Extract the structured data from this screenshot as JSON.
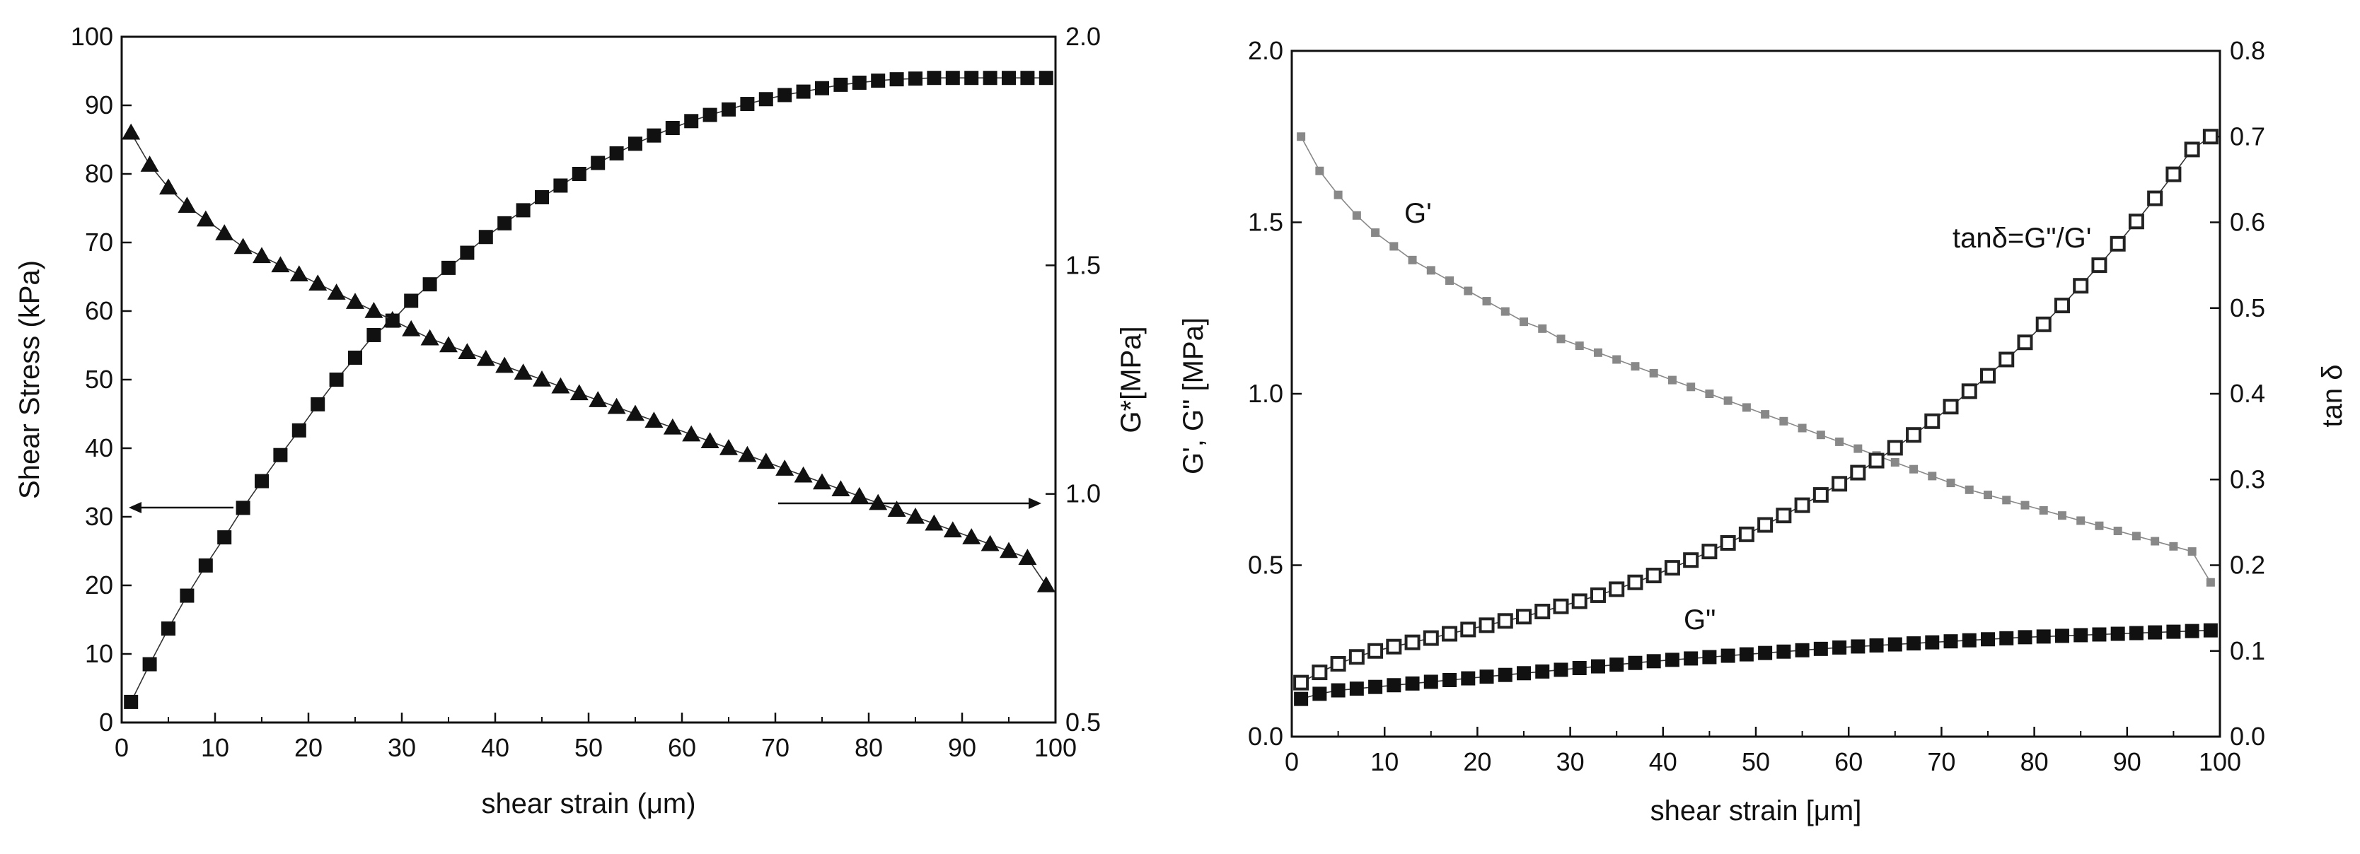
{
  "chart_data": [
    {
      "type": "scatter",
      "title": "",
      "xlabel": "shear strain (μm)",
      "ylabel_left": "Shear Stress (kPa)",
      "ylabel_right": "G*[MPa]",
      "xlim": [
        0,
        100
      ],
      "ylim_left": [
        0,
        100
      ],
      "ylim_right": [
        0.5,
        2.0
      ],
      "x_ticks": [
        "0",
        "10",
        "20",
        "30",
        "40",
        "50",
        "60",
        "70",
        "80",
        "90",
        "100"
      ],
      "y_left_ticks": [
        "0",
        "10",
        "20",
        "30",
        "40",
        "50",
        "60",
        "70",
        "80",
        "90",
        "100"
      ],
      "y_right_ticks": [
        "0.5",
        "1.0",
        "1.5",
        "2.0"
      ],
      "series": [
        {
          "name": "Shear Stress",
          "axis": "left",
          "marker": "square",
          "x": [
            1,
            3,
            5,
            7,
            9,
            11,
            13,
            15,
            17,
            19,
            21,
            23,
            25,
            27,
            29,
            31,
            33,
            35,
            37,
            39,
            41,
            43,
            45,
            47,
            49,
            51,
            53,
            55,
            57,
            59,
            61,
            63,
            65,
            67,
            69,
            71,
            73,
            75,
            77,
            79,
            81,
            83,
            85,
            87,
            89,
            91,
            93,
            95,
            97,
            99
          ],
          "y": [
            3,
            8.5,
            13.7,
            18.5,
            22.9,
            27,
            31.3,
            35.2,
            39,
            42.6,
            46.4,
            50,
            53.2,
            56.5,
            58.6,
            61.5,
            63.9,
            66.3,
            68.5,
            70.8,
            72.8,
            74.7,
            76.6,
            78.3,
            80,
            81.6,
            83,
            84.4,
            85.6,
            86.7,
            87.7,
            88.6,
            89.4,
            90.2,
            90.9,
            91.5,
            92,
            92.5,
            93,
            93.3,
            93.6,
            93.8,
            93.9,
            94,
            94,
            94,
            94,
            94,
            94,
            94
          ]
        },
        {
          "name": "G*",
          "axis": "right",
          "marker": "triangle",
          "x": [
            1,
            3,
            5,
            7,
            9,
            11,
            13,
            15,
            17,
            19,
            21,
            23,
            25,
            27,
            29,
            31,
            33,
            35,
            37,
            39,
            41,
            43,
            45,
            47,
            49,
            51,
            53,
            55,
            57,
            59,
            61,
            63,
            65,
            67,
            69,
            71,
            73,
            75,
            77,
            79,
            81,
            83,
            85,
            87,
            89,
            91,
            93,
            95,
            97,
            99
          ],
          "y": [
            1.79,
            1.72,
            1.67,
            1.63,
            1.6,
            1.57,
            1.54,
            1.52,
            1.5,
            1.48,
            1.46,
            1.44,
            1.42,
            1.4,
            1.38,
            1.36,
            1.34,
            1.325,
            1.31,
            1.295,
            1.28,
            1.265,
            1.25,
            1.235,
            1.22,
            1.205,
            1.19,
            1.175,
            1.16,
            1.145,
            1.13,
            1.115,
            1.1,
            1.085,
            1.07,
            1.055,
            1.04,
            1.025,
            1.01,
            0.995,
            0.98,
            0.965,
            0.95,
            0.935,
            0.92,
            0.905,
            0.89,
            0.875,
            0.86,
            0.8
          ]
        }
      ]
    },
    {
      "type": "scatter",
      "title": "",
      "xlabel": "shear strain [μm]",
      "ylabel_left": "G', G\" [MPa]",
      "ylabel_right": "tan δ",
      "xlim": [
        0,
        100
      ],
      "ylim_left": [
        0,
        2.0
      ],
      "ylim_right": [
        0,
        0.8
      ],
      "x_ticks": [
        "0",
        "10",
        "20",
        "30",
        "40",
        "50",
        "60",
        "70",
        "80",
        "90",
        "100"
      ],
      "y_left_ticks": [
        "0.0",
        "0.5",
        "1.0",
        "1.5",
        "2.0"
      ],
      "y_right_ticks": [
        "0.0",
        "0.1",
        "0.2",
        "0.3",
        "0.4",
        "0.5",
        "0.6",
        "0.7",
        "0.8"
      ],
      "annotations": [
        "G'",
        "tanδ=G\"/G'",
        "G\""
      ],
      "series": [
        {
          "name": "G'",
          "axis": "left",
          "marker": "small-square-gray",
          "x": [
            1,
            3,
            5,
            7,
            9,
            11,
            13,
            15,
            17,
            19,
            21,
            23,
            25,
            27,
            29,
            31,
            33,
            35,
            37,
            39,
            41,
            43,
            45,
            47,
            49,
            51,
            53,
            55,
            57,
            59,
            61,
            63,
            65,
            67,
            69,
            71,
            73,
            75,
            77,
            79,
            81,
            83,
            85,
            87,
            89,
            91,
            93,
            95,
            97,
            99
          ],
          "y": [
            1.75,
            1.65,
            1.58,
            1.52,
            1.47,
            1.43,
            1.39,
            1.36,
            1.33,
            1.3,
            1.27,
            1.24,
            1.21,
            1.19,
            1.16,
            1.14,
            1.12,
            1.1,
            1.08,
            1.06,
            1.04,
            1.02,
            1.0,
            0.98,
            0.96,
            0.94,
            0.92,
            0.9,
            0.88,
            0.86,
            0.84,
            0.82,
            0.8,
            0.78,
            0.76,
            0.74,
            0.72,
            0.705,
            0.69,
            0.675,
            0.66,
            0.645,
            0.63,
            0.615,
            0.6,
            0.585,
            0.57,
            0.555,
            0.54,
            0.45
          ]
        },
        {
          "name": "G\"",
          "axis": "left",
          "marker": "square",
          "x": [
            1,
            3,
            5,
            7,
            9,
            11,
            13,
            15,
            17,
            19,
            21,
            23,
            25,
            27,
            29,
            31,
            33,
            35,
            37,
            39,
            41,
            43,
            45,
            47,
            49,
            51,
            53,
            55,
            57,
            59,
            61,
            63,
            65,
            67,
            69,
            71,
            73,
            75,
            77,
            79,
            81,
            83,
            85,
            87,
            89,
            91,
            93,
            95,
            97,
            99
          ],
          "y": [
            0.11,
            0.125,
            0.135,
            0.14,
            0.145,
            0.15,
            0.155,
            0.16,
            0.165,
            0.17,
            0.175,
            0.18,
            0.185,
            0.19,
            0.195,
            0.2,
            0.205,
            0.21,
            0.215,
            0.22,
            0.224,
            0.228,
            0.232,
            0.236,
            0.24,
            0.244,
            0.248,
            0.252,
            0.256,
            0.26,
            0.263,
            0.266,
            0.269,
            0.272,
            0.275,
            0.278,
            0.281,
            0.284,
            0.287,
            0.29,
            0.292,
            0.294,
            0.296,
            0.298,
            0.3,
            0.302,
            0.304,
            0.306,
            0.308,
            0.31
          ]
        },
        {
          "name": "tanδ",
          "axis": "right",
          "marker": "hollow-square",
          "x": [
            1,
            3,
            5,
            7,
            9,
            11,
            13,
            15,
            17,
            19,
            21,
            23,
            25,
            27,
            29,
            31,
            33,
            35,
            37,
            39,
            41,
            43,
            45,
            47,
            49,
            51,
            53,
            55,
            57,
            59,
            61,
            63,
            65,
            67,
            69,
            71,
            73,
            75,
            77,
            79,
            81,
            83,
            85,
            87,
            89,
            91,
            93,
            95,
            97,
            99
          ],
          "y": [
            0.063,
            0.075,
            0.085,
            0.093,
            0.1,
            0.105,
            0.11,
            0.115,
            0.12,
            0.125,
            0.13,
            0.135,
            0.14,
            0.146,
            0.152,
            0.158,
            0.165,
            0.172,
            0.18,
            0.188,
            0.197,
            0.206,
            0.216,
            0.226,
            0.236,
            0.247,
            0.258,
            0.27,
            0.282,
            0.295,
            0.308,
            0.322,
            0.337,
            0.352,
            0.368,
            0.385,
            0.403,
            0.421,
            0.44,
            0.46,
            0.481,
            0.503,
            0.526,
            0.55,
            0.575,
            0.601,
            0.628,
            0.656,
            0.685,
            0.7
          ]
        }
      ]
    }
  ],
  "arrows": {
    "left_pointing": true,
    "right_pointing": true
  }
}
